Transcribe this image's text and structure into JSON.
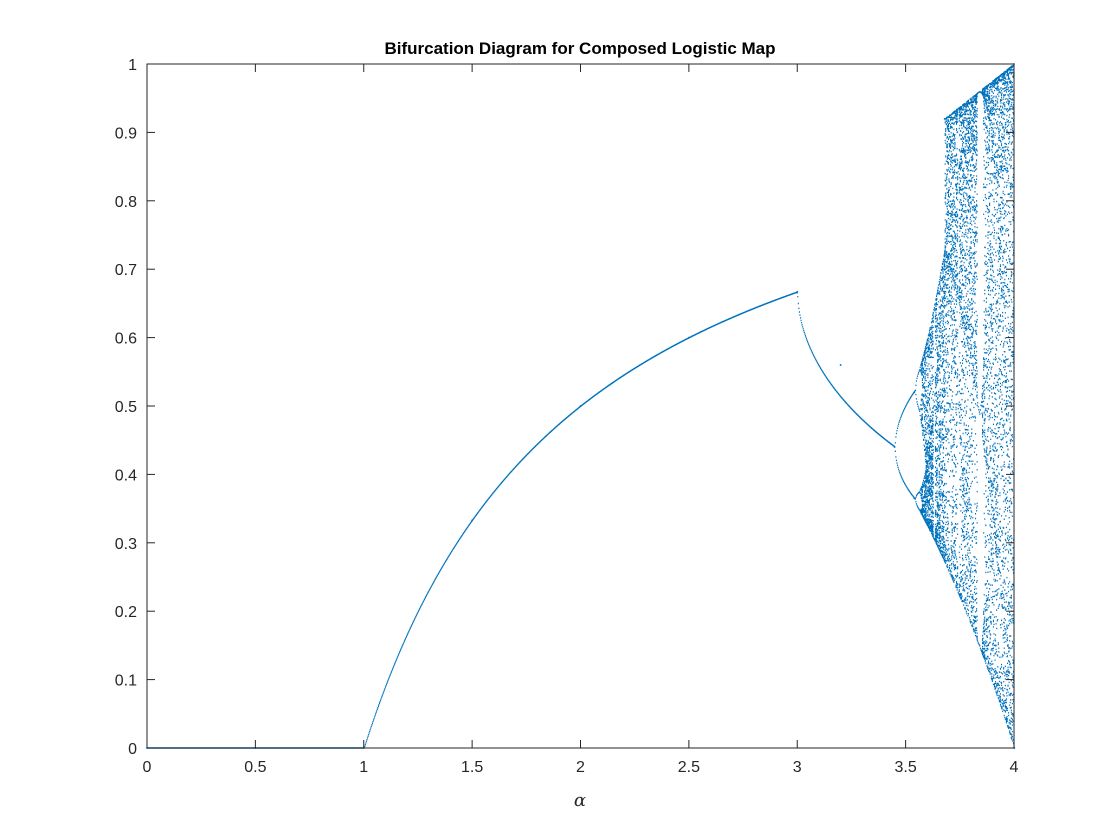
{
  "chart_data": {
    "type": "scatter",
    "title": "Bifurcation Diagram for Composed Logistic Map",
    "xlabel": "α",
    "ylabel": "",
    "xlim": [
      0,
      4
    ],
    "ylim": [
      0,
      1
    ],
    "xticks": [
      0,
      0.5,
      1,
      1.5,
      2,
      2.5,
      3,
      3.5,
      4
    ],
    "xtick_labels": [
      "0",
      "0.5",
      "1",
      "1.5",
      "2",
      "2.5",
      "3",
      "3.5",
      "4"
    ],
    "yticks": [
      0,
      0.1,
      0.2,
      0.3,
      0.4,
      0.5,
      0.6,
      0.7,
      0.8,
      0.9,
      1
    ],
    "ytick_labels": [
      "0",
      "0.1",
      "0.2",
      "0.3",
      "0.4",
      "0.5",
      "0.6",
      "0.7",
      "0.8",
      "0.9",
      "1"
    ],
    "grid": false,
    "legend": "none",
    "marker_color": "#0072BD",
    "series": [
      {
        "description_points": [
          [
            0,
            0
          ],
          [
            0.5,
            0
          ],
          [
            1,
            0
          ],
          [
            1.5,
            0.333
          ],
          [
            2,
            0.5
          ],
          [
            2.5,
            0.6
          ],
          [
            3,
            0.667
          ],
          [
            3.2,
            0.56
          ],
          [
            3.449,
            0.44
          ],
          [
            3.54,
            0.52
          ],
          [
            3.54,
            0.365
          ],
          [
            3.68,
            0.92
          ],
          [
            4,
            1
          ],
          [
            4,
            0
          ]
        ]
      }
    ]
  }
}
